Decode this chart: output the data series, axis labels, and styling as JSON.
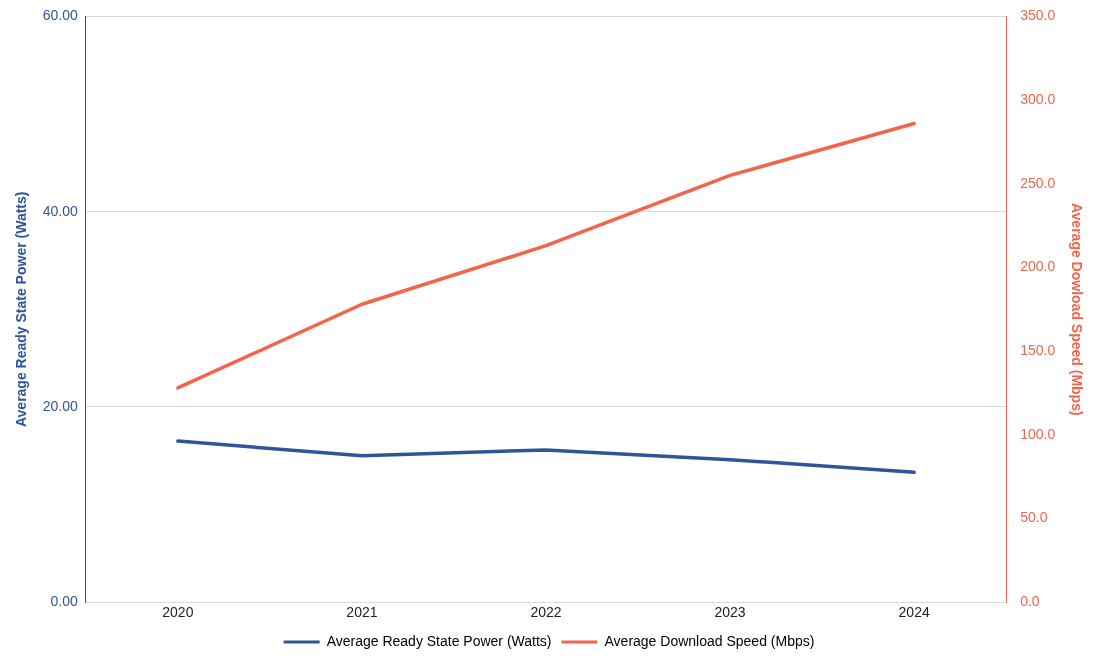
{
  "chart_data": {
    "type": "line",
    "categories": [
      "2020",
      "2021",
      "2022",
      "2023",
      "2024"
    ],
    "ylabel": "Average Ready State Power (Watts)",
    "y2label": "Average Dowload Speed (Mbps)",
    "series": [
      {
        "name": "Average Ready State Power (Watts)",
        "color": "#2f5597",
        "values": [
          16.5,
          15.0,
          15.6,
          14.6,
          13.3
        ]
      },
      {
        "name": "Average Download Speed (Mbps)",
        "color": "#f4644a",
        "axis": "y2",
        "values": [
          128,
          178,
          213,
          255,
          286
        ]
      }
    ],
    "ylim": [
      0,
      60
    ],
    "yticks": [
      {
        "value": 0,
        "label": "0.00"
      },
      {
        "value": 20,
        "label": "20.00"
      },
      {
        "value": 40,
        "label": "40.00"
      },
      {
        "value": 60,
        "label": "60.00"
      }
    ],
    "y2lim": [
      0,
      350
    ],
    "y2ticks": [
      {
        "value": 0,
        "label": "0.0"
      },
      {
        "value": 50,
        "label": "50.0"
      },
      {
        "value": 100,
        "label": "100.0"
      },
      {
        "value": 150,
        "label": "150.0"
      },
      {
        "value": 200,
        "label": "200.0"
      },
      {
        "value": 250,
        "label": "250.0"
      },
      {
        "value": 300,
        "label": "300.0"
      },
      {
        "value": 350,
        "label": "350.0"
      }
    ],
    "grid": "y",
    "legend": "bottom",
    "marker": "none",
    "line_style": "solid"
  }
}
